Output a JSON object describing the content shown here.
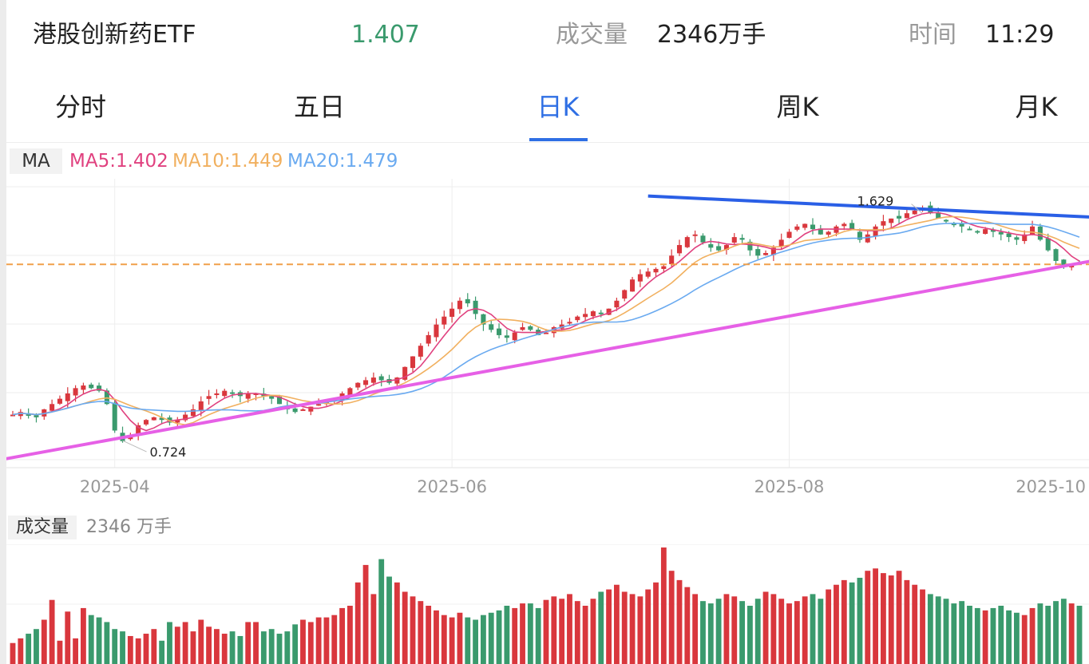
{
  "header": {
    "name": "港股创新药ETF",
    "price": "1.407",
    "volume_label": "成交量",
    "volume_value": "2346万手",
    "time_label": "时间",
    "time_value": "11:29"
  },
  "tabs": [
    {
      "label": "分时"
    },
    {
      "label": "五日"
    },
    {
      "label": "日K",
      "active": true
    },
    {
      "label": "周K"
    },
    {
      "label": "月K"
    }
  ],
  "ma": {
    "badge": "MA",
    "ma5": "MA5:1.402",
    "ma10": "MA10:1.449",
    "ma20": "MA20:1.479"
  },
  "colors": {
    "up": "#d9373d",
    "down": "#3a9a6d",
    "ma5": "#e0417f",
    "ma10": "#f1b05f",
    "ma20": "#6aaaf0",
    "trend_top": "#2a5fe6",
    "trend_bottom": "#e660e6",
    "ref_line": "#f0a04a",
    "price": "#3a9a6d"
  },
  "chart_annotations": {
    "high_label": "1.629",
    "low_label": "0.724"
  },
  "x_axis": {
    "labels": [
      "2025-04",
      "2025-06",
      "2025-08",
      "2025-10"
    ]
  },
  "volume": {
    "badge": "成交量",
    "value": "2346 万手"
  },
  "chart_data": {
    "type": "candlestick",
    "series": [
      {
        "name": "MA5",
        "last": 1.402
      },
      {
        "name": "MA10",
        "last": 1.449
      },
      {
        "name": "MA20",
        "last": 1.479
      }
    ],
    "x_tick_labels": [
      "2025-04",
      "2025-06",
      "2025-08",
      "2025-10"
    ],
    "high": 1.629,
    "low": 0.724,
    "last_price": 1.407,
    "ylim": [
      0.67,
      1.7
    ],
    "ohlc_path": [
      0.84,
      0.85,
      0.84,
      0.83,
      0.86,
      0.88,
      0.9,
      0.92,
      0.94,
      0.95,
      0.94,
      0.93,
      0.88,
      0.78,
      0.74,
      0.76,
      0.8,
      0.82,
      0.83,
      0.82,
      0.81,
      0.82,
      0.84,
      0.86,
      0.89,
      0.91,
      0.92,
      0.93,
      0.92,
      0.91,
      0.92,
      0.92,
      0.91,
      0.9,
      0.88,
      0.86,
      0.85,
      0.86,
      0.87,
      0.88,
      0.89,
      0.9,
      0.92,
      0.94,
      0.96,
      0.97,
      0.98,
      0.97,
      0.96,
      0.98,
      1.02,
      1.06,
      1.1,
      1.14,
      1.18,
      1.21,
      1.24,
      1.27,
      1.26,
      1.22,
      1.18,
      1.16,
      1.14,
      1.13,
      1.15,
      1.17,
      1.16,
      1.14,
      1.15,
      1.17,
      1.18,
      1.19,
      1.21,
      1.22,
      1.23,
      1.22,
      1.24,
      1.27,
      1.31,
      1.35,
      1.37,
      1.38,
      1.39,
      1.4,
      1.44,
      1.48,
      1.51,
      1.52,
      1.49,
      1.47,
      1.46,
      1.48,
      1.51,
      1.5,
      1.46,
      1.44,
      1.45,
      1.47,
      1.5,
      1.53,
      1.55,
      1.56,
      1.54,
      1.52,
      1.53,
      1.55,
      1.56,
      1.54,
      1.5,
      1.52,
      1.55,
      1.57,
      1.58,
      1.58,
      1.6,
      1.61,
      1.62,
      1.6,
      1.58,
      1.57,
      1.56,
      1.55,
      1.54,
      1.53,
      1.54,
      1.53,
      1.52,
      1.51,
      1.5,
      1.52,
      1.55,
      1.5,
      1.46,
      1.42,
      1.4,
      1.41,
      1.407
    ],
    "volume": [
      18,
      22,
      26,
      30,
      38,
      55,
      20,
      45,
      22,
      48,
      42,
      40,
      36,
      30,
      28,
      24,
      22,
      26,
      30,
      20,
      36,
      32,
      36,
      28,
      38,
      32,
      30,
      26,
      28,
      24,
      36,
      36,
      28,
      30,
      26,
      28,
      34,
      38,
      36,
      40,
      40,
      42,
      48,
      50,
      70,
      85,
      60,
      90,
      75,
      70,
      62,
      58,
      54,
      50,
      46,
      42,
      40,
      44,
      40,
      38,
      42,
      44,
      46,
      50,
      48,
      52,
      52,
      48,
      55,
      58,
      56,
      60,
      54,
      50,
      56,
      62,
      64,
      68,
      62,
      60,
      58,
      64,
      70,
      100,
      80,
      72,
      66,
      60,
      54,
      52,
      56,
      60,
      58,
      54,
      50,
      56,
      62,
      60,
      56,
      52,
      54,
      58,
      60,
      56,
      64,
      68,
      72,
      70,
      74,
      80,
      82,
      78,
      76,
      80,
      72,
      68,
      64,
      60,
      58,
      56,
      52,
      54,
      50,
      48,
      46,
      48,
      50,
      46,
      44,
      42,
      48,
      52,
      50,
      54,
      56,
      52,
      50
    ],
    "volume_ylim": [
      0,
      100
    ]
  }
}
